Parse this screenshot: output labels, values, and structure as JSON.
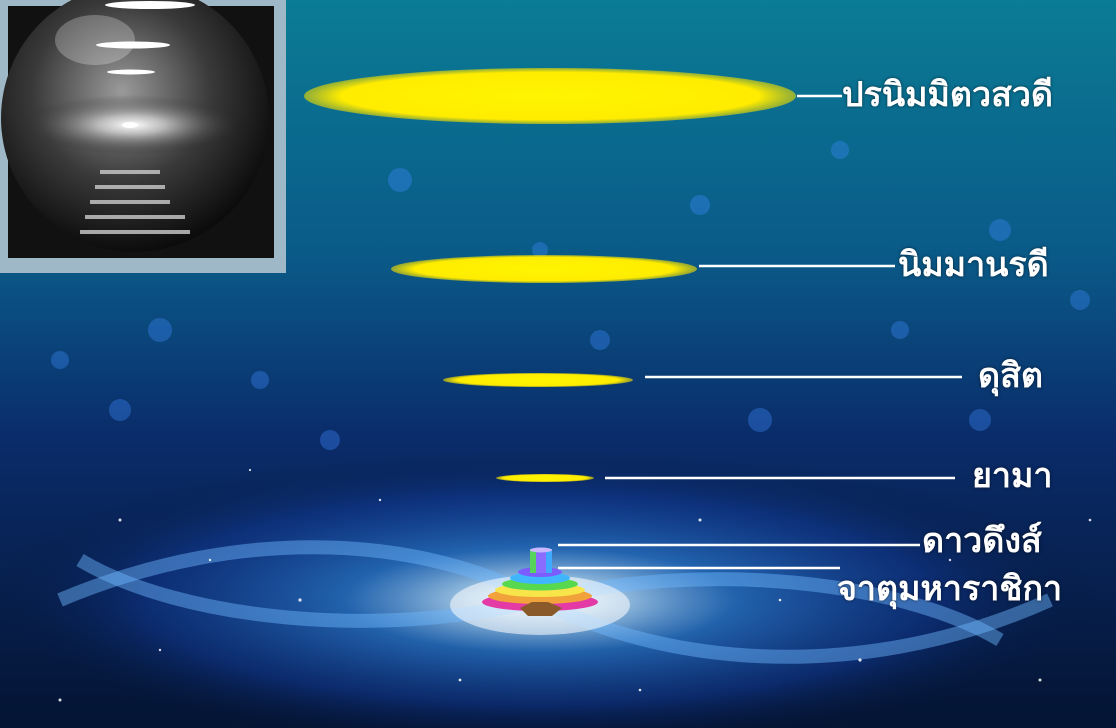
{
  "levels": [
    {
      "name": "ปรนิมมิตวสวดี"
    },
    {
      "name": "นิมมานรดี"
    },
    {
      "name": "ดุสิต"
    },
    {
      "name": "ยามา"
    },
    {
      "name": "ดาวดึงส์"
    },
    {
      "name": "จาตุมหาราชิกา"
    }
  ],
  "colors": {
    "disc": "#ffef00",
    "line": "#ffffff",
    "label": "#ffffff",
    "sky_top": "#0b6e8a",
    "sky_bottom": "#041433"
  },
  "icons": {
    "thumbnail": "crystal-ball-galaxy-icon",
    "mountain": "stepped-rainbow-mountain-icon"
  }
}
